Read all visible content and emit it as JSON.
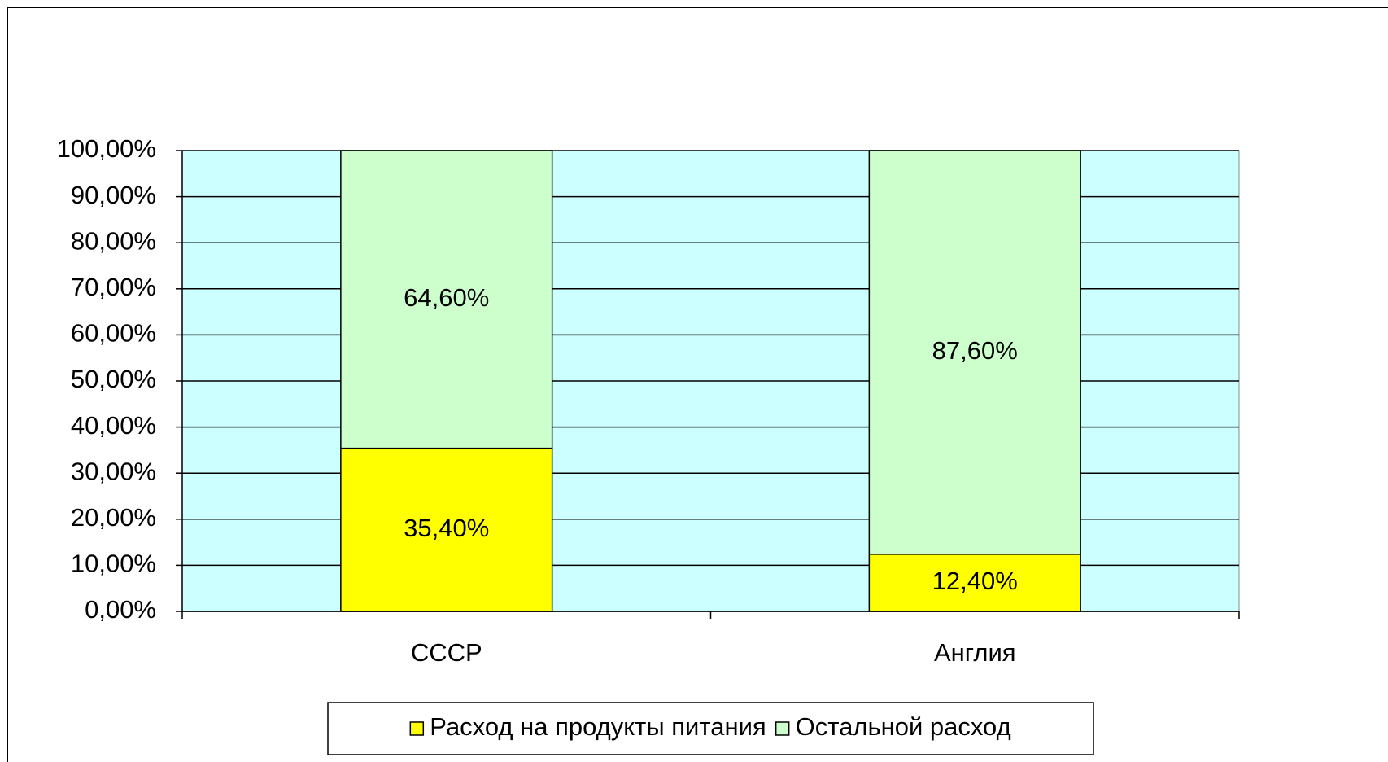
{
  "chart_data": {
    "type": "stacked_bar",
    "categories": [
      "СССР",
      "Англия"
    ],
    "series": [
      {
        "name": "Расход на продукты питания",
        "color": "#ffff00",
        "values": [
          35.4,
          12.4
        ],
        "value_labels": [
          "35,40%",
          "12,40%"
        ]
      },
      {
        "name": "Остальной расход",
        "color": "#ccffcc",
        "values": [
          64.6,
          87.6
        ],
        "value_labels": [
          "64,60%",
          "87,60%"
        ]
      }
    ],
    "ylim": [
      0,
      100
    ],
    "yticks": [
      {
        "value": 0,
        "label": "0,00%"
      },
      {
        "value": 10,
        "label": "10,00%"
      },
      {
        "value": 20,
        "label": "20,00%"
      },
      {
        "value": 30,
        "label": "30,00%"
      },
      {
        "value": 40,
        "label": "40,00%"
      },
      {
        "value": 50,
        "label": "50,00%"
      },
      {
        "value": 60,
        "label": "60,00%"
      },
      {
        "value": 70,
        "label": "70,00%"
      },
      {
        "value": 80,
        "label": "80,00%"
      },
      {
        "value": 90,
        "label": "90,00%"
      },
      {
        "value": 100,
        "label": "100,00%"
      }
    ],
    "grid": true,
    "plot_background": "#ccffff",
    "legend": "bottom"
  }
}
